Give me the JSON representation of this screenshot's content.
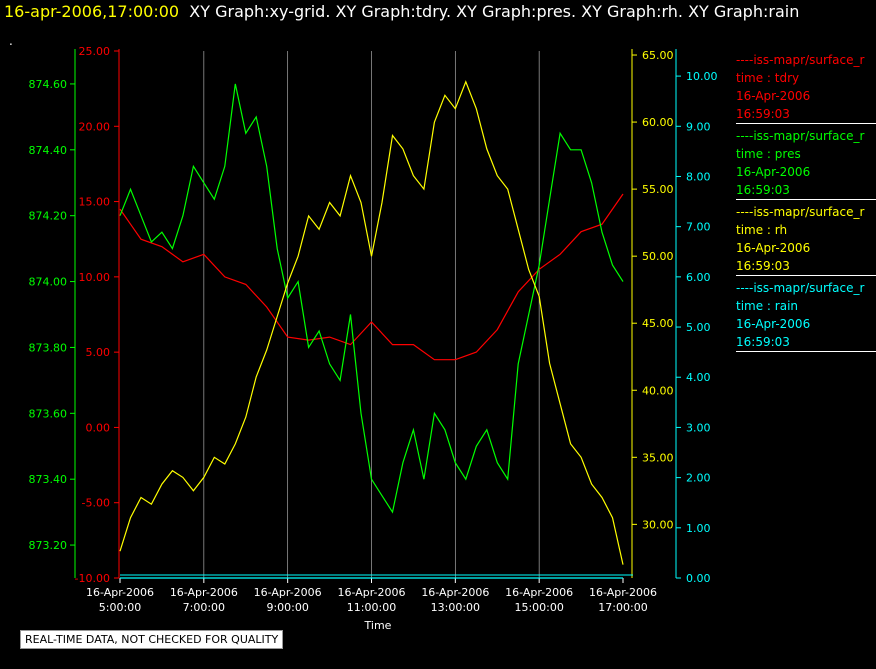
{
  "header": {
    "timestamp": "16-apr-2006,17:00:00",
    "titles": "XY Graph:xy-grid.  XY Graph:tdry.  XY Graph:pres.  XY Graph:rh.  XY Graph:rain",
    "dot": "."
  },
  "disclaimer": "REAL-TIME DATA, NOT CHECKED FOR QUALITY",
  "colors": {
    "background": "#000000",
    "tdry": "#ff0000",
    "pres": "#00ff00",
    "rh": "#ffff00",
    "rain": "#00ffff",
    "grid": "#ffffff"
  },
  "legend": [
    {
      "name": "----iss-mapr/surface_r",
      "var": "time : tdry",
      "date": "16-Apr-2006",
      "time": "16:59:03",
      "color": "#ff0000"
    },
    {
      "name": "----iss-mapr/surface_r",
      "var": "time : pres",
      "date": "16-Apr-2006",
      "time": "16:59:03",
      "color": "#00ff00"
    },
    {
      "name": "----iss-mapr/surface_r",
      "var": "time : rh",
      "date": "16-Apr-2006",
      "time": "16:59:03",
      "color": "#ffff00"
    },
    {
      "name": "----iss-mapr/surface_r",
      "var": "time : rain",
      "date": "16-Apr-2006",
      "time": "16:59:03",
      "color": "#00ffff"
    }
  ],
  "chart_data": {
    "type": "line",
    "xlabel": "Time",
    "x_ticks": [
      [
        "16-Apr-2006",
        "5:00:00"
      ],
      [
        "16-Apr-2006",
        "7:00:00"
      ],
      [
        "16-Apr-2006",
        "9:00:00"
      ],
      [
        "16-Apr-2006",
        "11:00:00"
      ],
      [
        "16-Apr-2006",
        "13:00:00"
      ],
      [
        "16-Apr-2006",
        "15:00:00"
      ],
      [
        "16-Apr-2006",
        "17:00:00"
      ]
    ],
    "xlim": [
      5,
      17
    ],
    "grid": "vertical",
    "axes": {
      "pres": {
        "ylim": [
          873.1,
          874.7
        ],
        "ticks": [
          "873.20",
          "873.40",
          "873.60",
          "873.80",
          "874.00",
          "874.20",
          "874.40",
          "874.60"
        ]
      },
      "tdry": {
        "ylim": [
          -10,
          25
        ],
        "ticks": [
          "-10.00",
          "-5.00",
          "0.00",
          "5.00",
          "10.00",
          "15.00",
          "20.00",
          "25.00"
        ]
      },
      "rh": {
        "ylim": [
          26,
          65.3
        ],
        "ticks": [
          "30.00",
          "35.00",
          "40.00",
          "45.00",
          "50.00",
          "55.00",
          "60.00",
          "65.00"
        ]
      },
      "rain": {
        "ylim": [
          0,
          10.5
        ],
        "ticks": [
          "0.00",
          "1.00",
          "2.00",
          "3.00",
          "4.00",
          "5.00",
          "6.00",
          "7.00",
          "8.00",
          "9.00",
          "10.00"
        ]
      }
    },
    "series": [
      {
        "key": "tdry",
        "x": [
          5.0,
          5.5,
          6.0,
          6.5,
          7.0,
          7.5,
          8.0,
          8.5,
          9.0,
          9.5,
          10.0,
          10.5,
          11.0,
          11.5,
          12.0,
          12.5,
          13.0,
          13.5,
          14.0,
          14.5,
          15.0,
          15.5,
          16.0,
          16.5,
          17.0
        ],
        "values": [
          14.5,
          12.5,
          12.0,
          11.0,
          11.5,
          10.0,
          9.5,
          8.0,
          6.0,
          5.8,
          6.0,
          5.5,
          7.0,
          5.5,
          5.5,
          4.5,
          4.5,
          5.0,
          6.5,
          9.0,
          10.5,
          11.5,
          13.0,
          13.5,
          15.5
        ]
      },
      {
        "key": "pres",
        "x": [
          5.0,
          5.25,
          5.5,
          5.75,
          6.0,
          6.25,
          6.5,
          6.75,
          7.0,
          7.25,
          7.5,
          7.75,
          8.0,
          8.25,
          8.5,
          8.75,
          9.0,
          9.25,
          9.5,
          9.75,
          10.0,
          10.25,
          10.5,
          10.75,
          11.0,
          11.25,
          11.5,
          11.75,
          12.0,
          12.25,
          12.5,
          12.75,
          13.0,
          13.25,
          13.5,
          13.75,
          14.0,
          14.25,
          14.5,
          14.75,
          15.0,
          15.25,
          15.5,
          15.75,
          16.0,
          16.25,
          16.5,
          16.75,
          17.0
        ],
        "values": [
          874.2,
          874.28,
          874.2,
          874.12,
          874.15,
          874.1,
          874.2,
          874.35,
          874.3,
          874.25,
          874.35,
          874.6,
          874.45,
          874.5,
          874.35,
          874.1,
          873.95,
          874.0,
          873.8,
          873.85,
          873.75,
          873.7,
          873.9,
          873.6,
          873.4,
          873.35,
          873.3,
          873.45,
          873.55,
          873.4,
          873.6,
          873.55,
          873.45,
          873.4,
          873.5,
          873.55,
          873.45,
          873.4,
          873.75,
          873.9,
          874.05,
          874.25,
          874.45,
          874.4,
          874.4,
          874.3,
          874.15,
          874.05,
          874.0
        ]
      },
      {
        "key": "rh",
        "x": [
          5.0,
          5.25,
          5.5,
          5.75,
          6.0,
          6.25,
          6.5,
          6.75,
          7.0,
          7.25,
          7.5,
          7.75,
          8.0,
          8.25,
          8.5,
          8.75,
          9.0,
          9.25,
          9.5,
          9.75,
          10.0,
          10.25,
          10.5,
          10.75,
          11.0,
          11.25,
          11.5,
          11.75,
          12.0,
          12.25,
          12.5,
          12.75,
          13.0,
          13.25,
          13.5,
          13.75,
          14.0,
          14.25,
          14.5,
          14.75,
          15.0,
          15.25,
          15.5,
          15.75,
          16.0,
          16.25,
          16.5,
          16.75,
          17.0
        ],
        "values": [
          28.0,
          30.5,
          32.0,
          31.5,
          33.0,
          34.0,
          33.5,
          32.5,
          33.5,
          35.0,
          34.5,
          36.0,
          38.0,
          41.0,
          43.0,
          45.5,
          48.0,
          50.0,
          53.0,
          52.0,
          54.0,
          53.0,
          56.0,
          54.0,
          50.0,
          54.0,
          59.0,
          58.0,
          56.0,
          55.0,
          60.0,
          62.0,
          61.0,
          63.0,
          61.0,
          58.0,
          56.0,
          55.0,
          52.0,
          49.0,
          47.0,
          42.0,
          39.0,
          36.0,
          35.0,
          33.0,
          32.0,
          30.5,
          27.0
        ]
      },
      {
        "key": "rain",
        "x": [
          5.0,
          17.0
        ],
        "values": [
          0.0,
          0.0
        ]
      }
    ]
  }
}
